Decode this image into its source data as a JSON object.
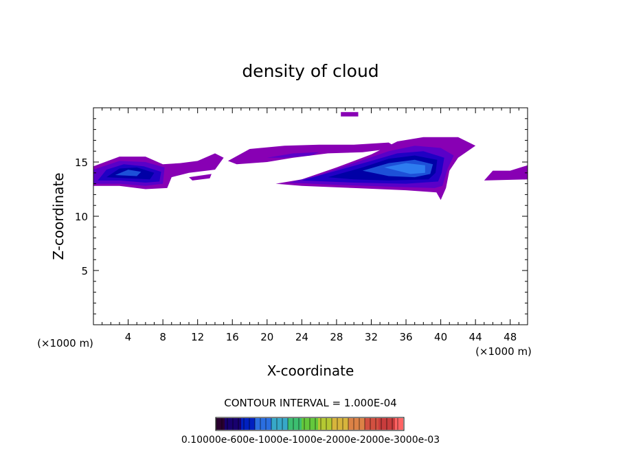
{
  "chart_data": {
    "type": "heatmap",
    "title": "density of cloud",
    "xlabel": "X-coordinate",
    "ylabel": "Z-coordinate",
    "x_unit": "(×1000 m)",
    "xlim": [
      0,
      50
    ],
    "ylim": [
      0,
      20
    ],
    "x_ticks": [
      4,
      8,
      12,
      16,
      20,
      24,
      28,
      32,
      36,
      40,
      44,
      48
    ],
    "y_ticks": [
      5,
      10,
      15
    ],
    "contour_interval_label": "CONTOUR INTERVAL = 1.000E-04",
    "colorbar_label": "0.10000e-600e-1000e-1000e-2000e-2000e-3000e-03",
    "colorbar_colors": [
      "#2a0030",
      "#18006e",
      "#0020c0",
      "#2a6ee0",
      "#37a8c8",
      "#3cbf70",
      "#64c83c",
      "#b4c832",
      "#d7b43c",
      "#dc8246",
      "#d25040",
      "#c83c3c",
      "#ff6464"
    ],
    "cloud_colors": [
      "#8800b4",
      "#7200c2",
      "#5a00c8",
      "#3a00c8",
      "#2000c4",
      "#0800b8",
      "#0000a6",
      "#00169a",
      "#1d50d8",
      "#2d7cf0"
    ],
    "cloud_regions": [
      {
        "name": "main-anvil",
        "levels": [
          [
            [
              21,
              13.0
            ],
            [
              24,
              13.4
            ],
            [
              28,
              14.5
            ],
            [
              32,
              15.7
            ],
            [
              35,
              16.9
            ],
            [
              38,
              17.3
            ],
            [
              42,
              17.3
            ],
            [
              44,
              16.5
            ],
            [
              42,
              15.4
            ],
            [
              41,
              14.2
            ],
            [
              40.6,
              12.6
            ],
            [
              40,
              11.5
            ],
            [
              39.5,
              12.2
            ],
            [
              36,
              12.4
            ],
            [
              30,
              12.6
            ],
            [
              24,
              12.8
            ]
          ],
          [
            [
              22.5,
              13.1
            ],
            [
              26,
              13.8
            ],
            [
              30,
              14.9
            ],
            [
              34,
              16.0
            ],
            [
              37,
              16.5
            ],
            [
              40,
              16.3
            ],
            [
              41.5,
              15.6
            ],
            [
              40.8,
              14.4
            ],
            [
              40.2,
              12.8
            ],
            [
              39.3,
              12.6
            ],
            [
              35,
              12.7
            ],
            [
              28,
              12.9
            ]
          ],
          [
            [
              24,
              13.3
            ],
            [
              28,
              14.2
            ],
            [
              32,
              15.1
            ],
            [
              35,
              15.8
            ],
            [
              38,
              16.0
            ],
            [
              40.4,
              15.4
            ],
            [
              40.1,
              14.0
            ],
            [
              39.7,
              13.2
            ],
            [
              36,
              13.0
            ],
            [
              30,
              13.1
            ]
          ],
          [
            [
              27,
              13.6
            ],
            [
              31,
              14.5
            ],
            [
              34,
              15.3
            ],
            [
              37,
              15.6
            ],
            [
              39.6,
              15.2
            ],
            [
              39.4,
              14.0
            ],
            [
              38.6,
              13.4
            ],
            [
              34,
              13.3
            ],
            [
              30,
              13.4
            ]
          ],
          [
            [
              31,
              14.2
            ],
            [
              34,
              14.9
            ],
            [
              37,
              15.2
            ],
            [
              39.1,
              14.8
            ],
            [
              38.8,
              13.9
            ],
            [
              37,
              13.6
            ],
            [
              34,
              13.7
            ]
          ],
          [
            [
              33.5,
              14.5
            ],
            [
              36,
              14.9
            ],
            [
              38.2,
              14.7
            ],
            [
              38.2,
              14.0
            ],
            [
              36.5,
              13.9
            ]
          ]
        ]
      },
      {
        "name": "left-cloud",
        "levels": [
          [
            [
              0,
              12.8
            ],
            [
              0,
              14.6
            ],
            [
              3,
              15.5
            ],
            [
              6,
              15.5
            ],
            [
              8,
              14.8
            ],
            [
              10,
              14.9
            ],
            [
              12,
              15.1
            ],
            [
              14,
              15.8
            ],
            [
              15,
              15.4
            ],
            [
              14,
              14.3
            ],
            [
              11,
              14.0
            ],
            [
              9,
              13.6
            ],
            [
              8.5,
              12.6
            ],
            [
              6,
              12.5
            ],
            [
              3,
              12.8
            ]
          ],
          [
            [
              0,
              13.0
            ],
            [
              0,
              14.3
            ],
            [
              3,
              15.1
            ],
            [
              6,
              15.0
            ],
            [
              8.2,
              14.5
            ],
            [
              8,
              13.0
            ],
            [
              6,
              12.8
            ],
            [
              3,
              13.0
            ]
          ],
          [
            [
              0.5,
              13.3
            ],
            [
              1.5,
              14.3
            ],
            [
              3.5,
              14.8
            ],
            [
              5.8,
              14.6
            ],
            [
              7.8,
              14.1
            ],
            [
              7.6,
              13.2
            ],
            [
              6,
              13.1
            ],
            [
              3,
              13.3
            ]
          ],
          [
            [
              1.5,
              13.6
            ],
            [
              3,
              14.4
            ],
            [
              5,
              14.5
            ],
            [
              7,
              14.0
            ],
            [
              6.5,
              13.4
            ],
            [
              4,
              13.5
            ]
          ],
          [
            [
              2.5,
              13.8
            ],
            [
              4,
              14.3
            ],
            [
              5.5,
              14.1
            ],
            [
              5,
              13.7
            ]
          ]
        ]
      },
      {
        "name": "upper-thin-layer",
        "levels": [
          [
            [
              15.5,
              15.1
            ],
            [
              18,
              16.2
            ],
            [
              22,
              16.5
            ],
            [
              26,
              16.6
            ],
            [
              30,
              16.6
            ],
            [
              34,
              16.8
            ],
            [
              35,
              16.3
            ],
            [
              31,
              15.9
            ],
            [
              27,
              15.8
            ],
            [
              23,
              15.4
            ],
            [
              20,
              15.0
            ],
            [
              16.5,
              14.8
            ]
          ],
          [
            [
              20,
              15.4
            ],
            [
              23,
              15.8
            ],
            [
              26,
              15.9
            ],
            [
              25,
              15.6
            ],
            [
              22,
              15.4
            ]
          ]
        ]
      },
      {
        "name": "right-patch",
        "levels": [
          [
            [
              45,
              13.3
            ],
            [
              46,
              14.2
            ],
            [
              48,
              14.2
            ],
            [
              50,
              14.7
            ],
            [
              50,
              13.4
            ]
          ]
        ]
      },
      {
        "name": "small-top",
        "levels": [
          [
            [
              28.5,
              19.2
            ],
            [
              30.5,
              19.2
            ],
            [
              30.5,
              19.6
            ],
            [
              28.5,
              19.6
            ]
          ]
        ]
      },
      {
        "name": "small-fragment",
        "levels": [
          [
            [
              11,
              13.6
            ],
            [
              13.6,
              13.9
            ],
            [
              13.4,
              13.5
            ],
            [
              11.4,
              13.3
            ]
          ]
        ]
      }
    ]
  }
}
